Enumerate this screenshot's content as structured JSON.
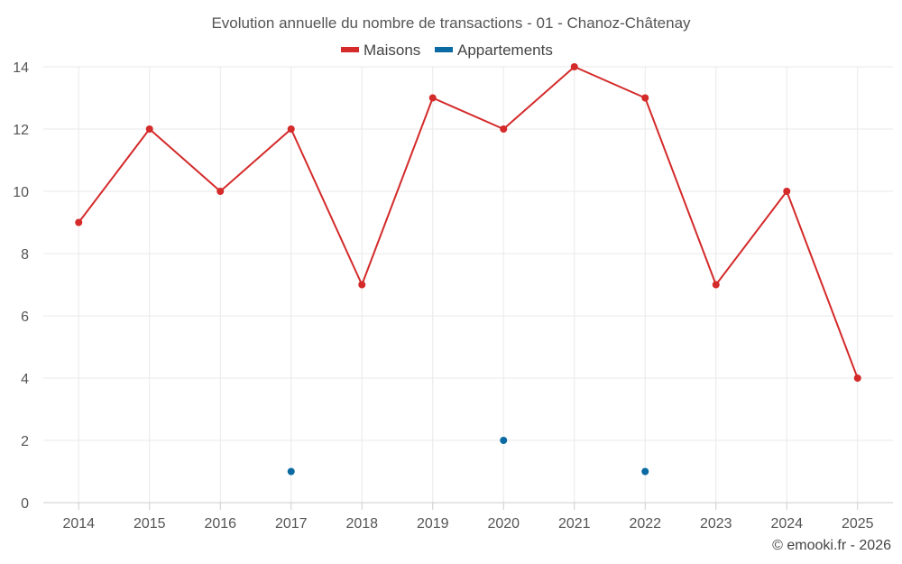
{
  "chart_data": {
    "type": "line",
    "title": "Evolution annuelle du nombre de transactions - 01 - Chanoz-Châtenay",
    "categories": [
      "2014",
      "2015",
      "2016",
      "2017",
      "2018",
      "2019",
      "2020",
      "2021",
      "2022",
      "2023",
      "2024",
      "2025"
    ],
    "series": [
      {
        "name": "Maisons",
        "color": "#d42a2a",
        "values": [
          9,
          12,
          10,
          12,
          7,
          13,
          12,
          14,
          13,
          7,
          10,
          4
        ]
      },
      {
        "name": "Appartements",
        "color": "#0a6aa1",
        "values": [
          null,
          null,
          null,
          1,
          null,
          null,
          2,
          null,
          1,
          null,
          null,
          null
        ]
      }
    ],
    "yticks": [
      "0",
      "2",
      "4",
      "6",
      "8",
      "10",
      "12",
      "14"
    ],
    "ylim": [
      0,
      14
    ],
    "grid": true,
    "legend_position": "top-center"
  },
  "credit": "© emooki.fr - 2026"
}
